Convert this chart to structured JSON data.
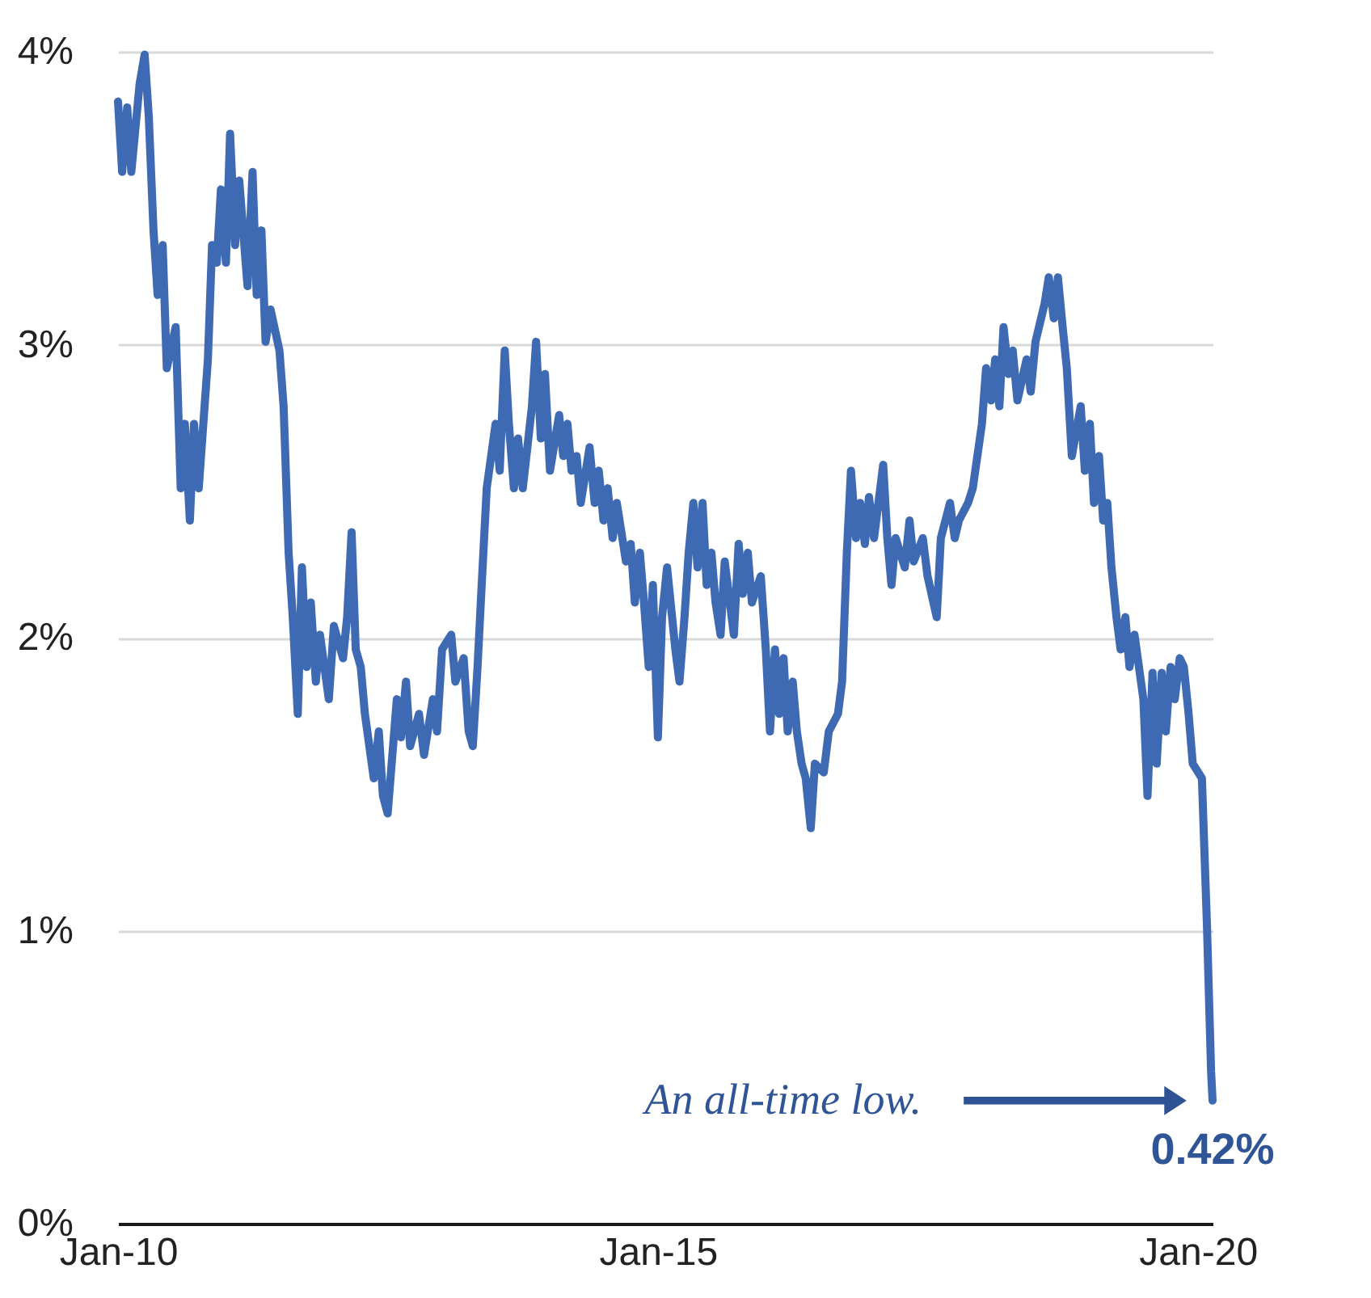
{
  "chart_data": {
    "type": "line",
    "x": [
      "2010-01-01",
      "2010-01-15",
      "2010-02-01",
      "2010-02-15",
      "2010-03-15",
      "2010-04-01",
      "2010-04-15",
      "2010-05-01",
      "2010-05-15",
      "2010-06-01",
      "2010-06-15",
      "2010-07-15",
      "2010-08-01",
      "2010-08-15",
      "2010-09-01",
      "2010-09-15",
      "2010-10-01",
      "2010-11-01",
      "2010-11-15",
      "2010-12-01",
      "2010-12-15",
      "2011-01-01",
      "2011-01-15",
      "2011-02-01",
      "2011-02-15",
      "2011-03-15",
      "2011-04-01",
      "2011-04-15",
      "2011-05-01",
      "2011-05-15",
      "2011-06-01",
      "2011-07-01",
      "2011-07-15",
      "2011-08-01",
      "2011-08-15",
      "2011-09-01",
      "2011-09-15",
      "2011-10-01",
      "2011-10-15",
      "2011-11-01",
      "2011-11-15",
      "2011-12-15",
      "2012-01-01",
      "2012-02-01",
      "2012-02-15",
      "2012-03-01",
      "2012-03-15",
      "2012-04-01",
      "2012-04-15",
      "2012-05-15",
      "2012-06-01",
      "2012-06-15",
      "2012-07-01",
      "2012-08-01",
      "2012-08-15",
      "2012-09-01",
      "2012-09-15",
      "2012-10-15",
      "2012-11-01",
      "2012-12-01",
      "2012-12-15",
      "2013-01-01",
      "2013-02-01",
      "2013-02-15",
      "2013-03-15",
      "2013-04-01",
      "2013-04-15",
      "2013-05-01",
      "2013-05-15",
      "2013-06-01",
      "2013-07-01",
      "2013-07-15",
      "2013-08-01",
      "2013-08-15",
      "2013-09-01",
      "2013-09-15",
      "2013-10-01",
      "2013-11-01",
      "2013-11-15",
      "2013-12-01",
      "2013-12-15",
      "2014-01-01",
      "2014-02-01",
      "2014-02-15",
      "2014-03-01",
      "2014-03-15",
      "2014-04-01",
      "2014-04-15",
      "2014-05-15",
      "2014-06-01",
      "2014-06-15",
      "2014-07-01",
      "2014-07-15",
      "2014-08-01",
      "2014-08-15",
      "2014-09-15",
      "2014-10-01",
      "2014-10-15",
      "2014-11-01",
      "2014-11-15",
      "2014-12-01",
      "2014-12-15",
      "2015-01-01",
      "2015-01-15",
      "2015-02-01",
      "2015-03-01",
      "2015-03-15",
      "2015-04-01",
      "2015-04-15",
      "2015-05-01",
      "2015-05-15",
      "2015-06-01",
      "2015-06-15",
      "2015-07-01",
      "2015-07-15",
      "2015-08-01",
      "2015-08-15",
      "2015-09-15",
      "2015-10-01",
      "2015-10-15",
      "2015-11-01",
      "2015-11-15",
      "2015-12-15",
      "2016-01-01",
      "2016-01-15",
      "2016-02-01",
      "2016-02-15",
      "2016-03-01",
      "2016-03-15",
      "2016-04-01",
      "2016-04-15",
      "2016-05-01",
      "2016-05-15",
      "2016-06-01",
      "2016-06-15",
      "2016-07-15",
      "2016-08-01",
      "2016-09-01",
      "2016-09-15",
      "2016-10-01",
      "2016-10-15",
      "2016-11-01",
      "2016-11-15",
      "2016-12-01",
      "2016-12-15",
      "2017-01-01",
      "2017-02-01",
      "2017-02-15",
      "2017-03-01",
      "2017-03-15",
      "2017-04-15",
      "2017-05-01",
      "2017-05-15",
      "2017-06-15",
      "2017-07-01",
      "2017-08-01",
      "2017-08-15",
      "2017-09-15",
      "2017-10-01",
      "2017-10-15",
      "2017-11-15",
      "2017-12-01",
      "2018-01-01",
      "2018-01-15",
      "2018-02-01",
      "2018-02-15",
      "2018-03-01",
      "2018-03-15",
      "2018-04-01",
      "2018-04-15",
      "2018-05-01",
      "2018-06-01",
      "2018-06-15",
      "2018-07-01",
      "2018-08-01",
      "2018-08-15",
      "2018-09-01",
      "2018-09-15",
      "2018-10-01",
      "2018-10-15",
      "2018-11-01",
      "2018-12-01",
      "2018-12-15",
      "2019-01-01",
      "2019-01-15",
      "2019-02-01",
      "2019-02-15",
      "2019-03-01",
      "2019-03-15",
      "2019-04-01",
      "2019-04-15",
      "2019-05-01",
      "2019-05-15",
      "2019-06-01",
      "2019-07-01",
      "2019-07-15",
      "2019-08-01",
      "2019-08-15",
      "2019-09-01",
      "2019-09-15",
      "2019-10-01",
      "2019-10-15",
      "2019-11-01",
      "2019-11-15",
      "2019-12-01",
      "2019-12-15",
      "2020-01-15",
      "2020-02-01",
      "2020-02-15",
      "2020-02-20"
    ],
    "series": [
      {
        "color": "#3e6ab4",
        "values": [
          3.83,
          3.59,
          3.81,
          3.59,
          3.89,
          3.99,
          3.78,
          3.39,
          3.17,
          3.34,
          2.92,
          3.06,
          2.51,
          2.73,
          2.4,
          2.73,
          2.51,
          2.95,
          3.34,
          3.28,
          3.53,
          3.28,
          3.72,
          3.34,
          3.56,
          3.2,
          3.59,
          3.17,
          3.39,
          3.01,
          3.12,
          2.98,
          2.79,
          2.29,
          2.07,
          1.74,
          2.24,
          1.9,
          2.12,
          1.85,
          2.01,
          1.79,
          2.04,
          1.93,
          2.07,
          2.36,
          1.96,
          1.9,
          1.74,
          1.52,
          1.68,
          1.46,
          1.4,
          1.79,
          1.66,
          1.85,
          1.63,
          1.74,
          1.6,
          1.79,
          1.68,
          1.96,
          2.01,
          1.85,
          1.93,
          1.68,
          1.63,
          1.9,
          2.18,
          2.51,
          2.73,
          2.57,
          2.98,
          2.73,
          2.51,
          2.68,
          2.51,
          2.79,
          3.01,
          2.68,
          2.9,
          2.57,
          2.76,
          2.62,
          2.73,
          2.57,
          2.62,
          2.46,
          2.65,
          2.46,
          2.57,
          2.4,
          2.51,
          2.34,
          2.46,
          2.26,
          2.32,
          2.12,
          2.29,
          2.12,
          1.9,
          2.18,
          1.66,
          2.07,
          2.24,
          1.96,
          1.85,
          2.07,
          2.29,
          2.46,
          2.24,
          2.46,
          2.18,
          2.29,
          2.12,
          2.01,
          2.26,
          2.01,
          2.32,
          2.15,
          2.29,
          2.12,
          2.21,
          1.96,
          1.68,
          1.96,
          1.74,
          1.93,
          1.68,
          1.85,
          1.68,
          1.57,
          1.52,
          1.35,
          1.57,
          1.54,
          1.68,
          1.74,
          1.85,
          2.29,
          2.57,
          2.34,
          2.46,
          2.32,
          2.48,
          2.34,
          2.59,
          2.34,
          2.18,
          2.34,
          2.24,
          2.4,
          2.26,
          2.34,
          2.21,
          2.07,
          2.34,
          2.46,
          2.34,
          2.4,
          2.46,
          2.51,
          2.73,
          2.92,
          2.81,
          2.95,
          2.79,
          3.06,
          2.9,
          2.98,
          2.81,
          2.95,
          2.84,
          3.01,
          3.14,
          3.23,
          3.09,
          3.23,
          3.06,
          2.92,
          2.62,
          2.79,
          2.57,
          2.73,
          2.46,
          2.62,
          2.4,
          2.46,
          2.24,
          2.07,
          1.96,
          2.07,
          1.9,
          2.01,
          1.79,
          1.46,
          1.88,
          1.57,
          1.88,
          1.68,
          1.9,
          1.79,
          1.93,
          1.9,
          1.74,
          1.57,
          1.52,
          1.02,
          0.52,
          0.42
        ]
      }
    ],
    "xlim": [
      "2010-01-01",
      "2020-02-20"
    ],
    "xticks": [
      {
        "value": "2010-01-01",
        "label": "Jan-10"
      },
      {
        "value": "2015-01-01",
        "label": "Jan-15"
      },
      {
        "value": "2020-01-01",
        "label": "Jan-20"
      }
    ],
    "ylim": [
      0,
      4
    ],
    "yticks": [
      {
        "value": 0,
        "label": "0%"
      },
      {
        "value": 1,
        "label": "1%"
      },
      {
        "value": 2,
        "label": "2%"
      },
      {
        "value": 3,
        "label": "3%"
      },
      {
        "value": 4,
        "label": "4%"
      }
    ],
    "grid": "y",
    "annotations": [
      "An all-time low.",
      "0.42%"
    ]
  }
}
